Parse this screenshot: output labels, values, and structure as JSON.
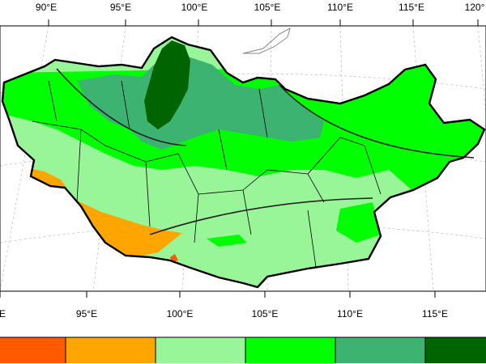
{
  "top_axis": {
    "labels": [
      "90°E",
      "95°E",
      "100°E",
      "105°E",
      "110°E",
      "115°E",
      "120°"
    ]
  },
  "bottom_axis": {
    "labels": [
      "E",
      "95°E",
      "100°E",
      "105°E",
      "110°E",
      "115°E"
    ]
  },
  "legend": {
    "colors": [
      "#ff5a00",
      "#ffa500",
      "#98f598",
      "#00ff00",
      "#3cb371",
      "#006400"
    ]
  },
  "map": {
    "colors": {
      "red": "#ff5a00",
      "orange": "#ffa500",
      "light_green": "#98f598",
      "green": "#00ff00",
      "medium_green": "#3cb371",
      "dark_green": "#006400",
      "border": "#000000",
      "grid": "#bbbbbb"
    }
  }
}
